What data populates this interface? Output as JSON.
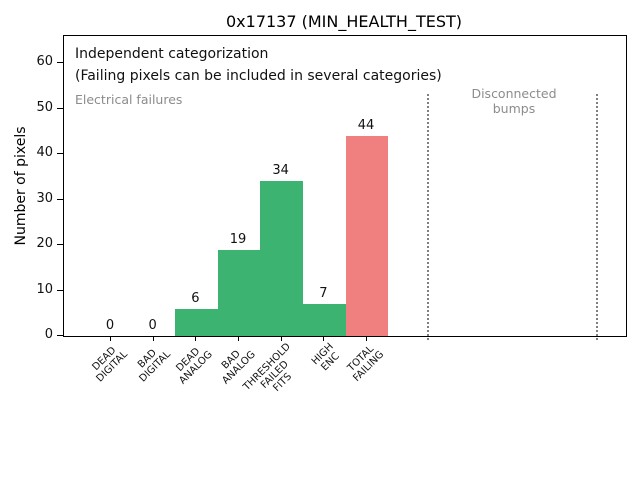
{
  "chart_data": {
    "type": "bar",
    "title": "0x17137 (MIN_HEALTH_TEST)",
    "xlabel": "",
    "ylabel": "Number of pixels",
    "categories": [
      "DEAD DIGITAL",
      "BAD DIGITAL",
      "DEAD ANALOG",
      "BAD ANALOG",
      "THRESHOLD FAILED FITS",
      "HIGH ENC",
      "TOTAL FAILING"
    ],
    "category_lines": [
      [
        "DEAD",
        "DIGITAL"
      ],
      [
        "BAD",
        "DIGITAL"
      ],
      [
        "DEAD",
        "ANALOG"
      ],
      [
        "BAD",
        "ANALOG"
      ],
      [
        "THRESHOLD",
        "FAILED",
        "FITS"
      ],
      [
        "HIGH",
        "ENC"
      ],
      [
        "TOTAL",
        "FAILING"
      ]
    ],
    "values": [
      0,
      0,
      6,
      19,
      34,
      7,
      44
    ],
    "bar_value_labels": [
      "0",
      "0",
      "6",
      "19",
      "34",
      "7",
      "44"
    ],
    "bar_colors": [
      "#3cb371",
      "#3cb371",
      "#3cb371",
      "#3cb371",
      "#3cb371",
      "#3cb371",
      "#f08080"
    ],
    "yticks": [
      0,
      10,
      20,
      30,
      40,
      50,
      60
    ],
    "ylim": [
      0,
      66
    ],
    "grid": false,
    "legend": null,
    "annotations": [
      "Independent categorization",
      "(Failing pixels can be included in several categories)"
    ],
    "region_labels": {
      "electrical": "Electrical failures",
      "disconnected_lines": [
        "Disconnected",
        "bumps"
      ]
    },
    "colors": {
      "bar_green": "#3cb371",
      "bar_red": "#f08080",
      "muted_gray": "#8c8c8c",
      "separator_gray": "#808080",
      "axis_black": "#000000",
      "background": "#ffffff"
    }
  }
}
